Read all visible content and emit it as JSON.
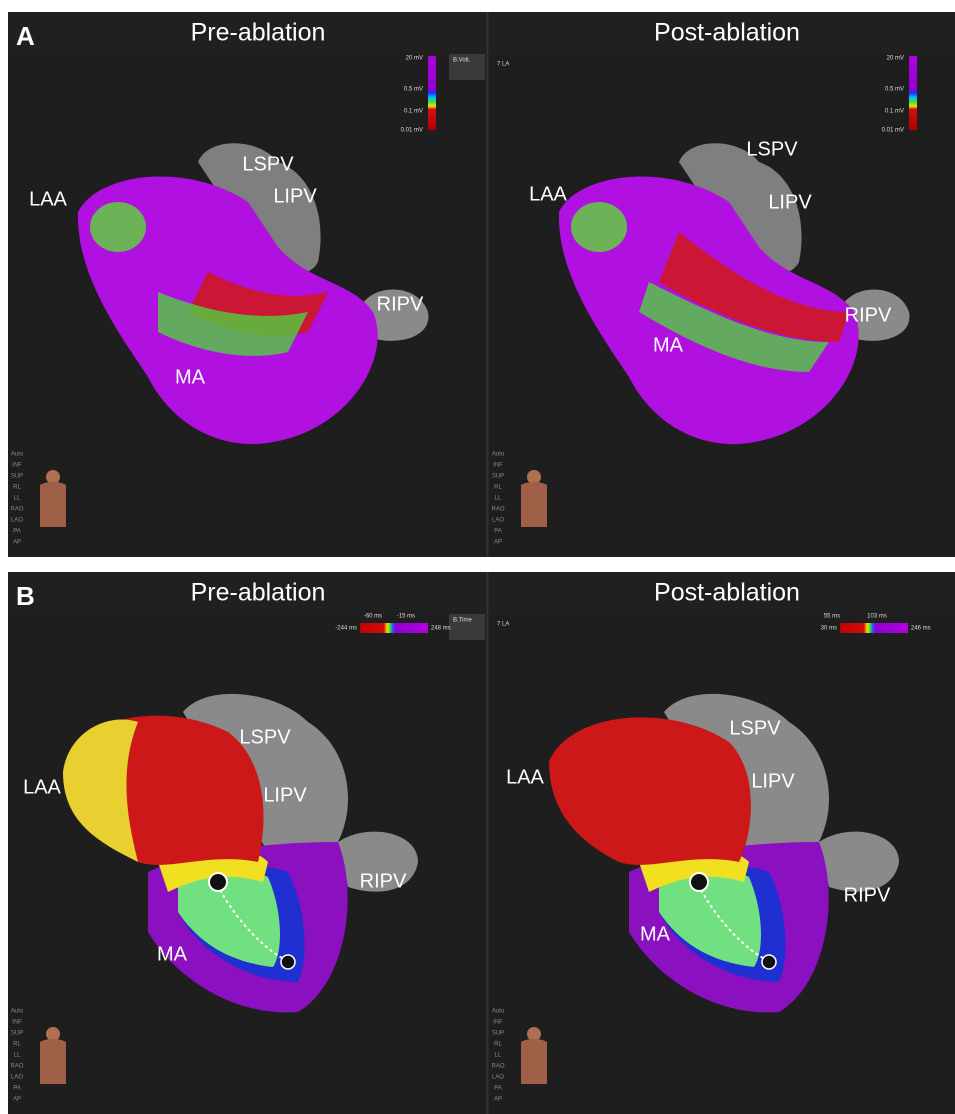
{
  "panels": [
    {
      "label": "A",
      "views": [
        {
          "title": "Pre-ablation",
          "button": "B.Volt.",
          "scale": [
            "20 mV",
            "0.5 mV",
            "0.1 mV",
            "0.01 mV"
          ],
          "anatomy": [
            "LAA",
            "LSPV",
            "LIPV",
            "RIPV",
            "MA"
          ]
        },
        {
          "title": "Post-ablation",
          "map_name": "7 LA",
          "scale": [
            "20 mV",
            "0.5 mV",
            "0.1 mV",
            "0.01 mV"
          ],
          "anatomy": [
            "LAA",
            "LSPV",
            "LIPV",
            "RIPV",
            "MA"
          ]
        }
      ]
    },
    {
      "label": "B",
      "views": [
        {
          "title": "Pre-ablation",
          "button": "B.Time",
          "scale": [
            "-60 ms",
            "-15 ms",
            "-244 ms",
            "248 ms"
          ],
          "anatomy": [
            "LAA",
            "LSPV",
            "LIPV",
            "RIPV",
            "MA"
          ]
        },
        {
          "title": "Post-ablation",
          "map_name": "7 LA",
          "scale": [
            "55 ms",
            "103 ms",
            "30 ms",
            "246 ms"
          ],
          "anatomy": [
            "LAA",
            "LSPV",
            "LIPV",
            "RIPV",
            "MA"
          ]
        }
      ]
    }
  ],
  "view_buttons": [
    "Auto",
    "INF",
    "SUP",
    "RL",
    "LL",
    "RAO",
    "LAO",
    "PA",
    "AP"
  ]
}
